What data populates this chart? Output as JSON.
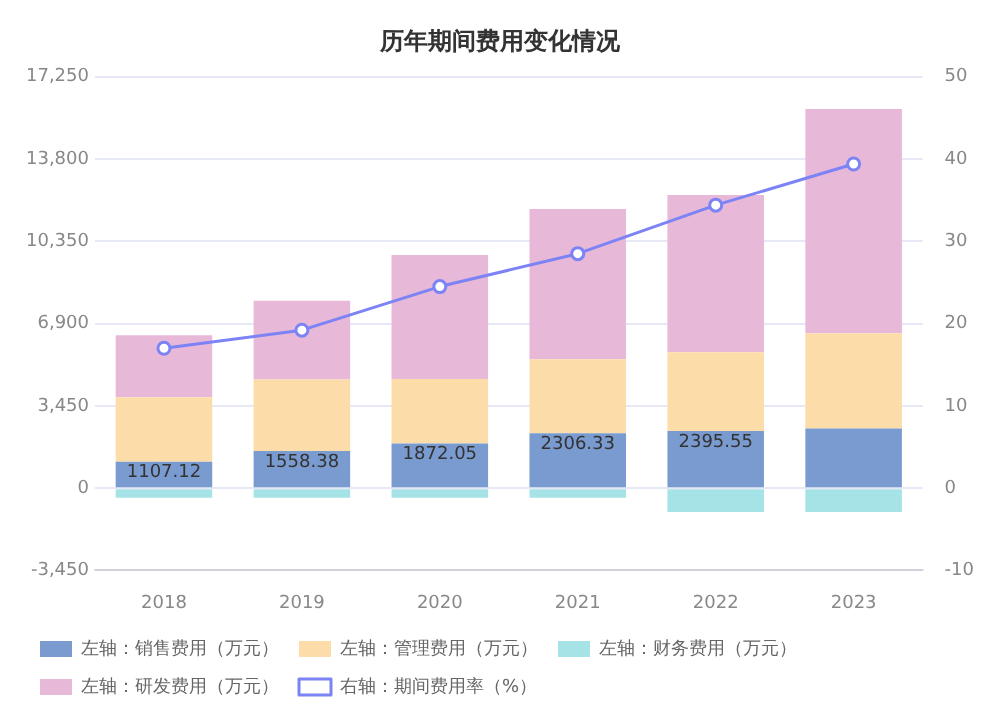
{
  "chart_data": {
    "type": "bar",
    "title": "历年期间费用变化情况",
    "stacked": true,
    "categories": [
      "2018",
      "2019",
      "2020",
      "2021",
      "2022",
      "2023"
    ],
    "series": [
      {
        "name": "左轴：销售费用（万元）",
        "color": "#7a9bd0",
        "values": [
          1107.12,
          1558.38,
          1872.05,
          2306.33,
          2395.55,
          2500
        ],
        "value_labels": [
          "1107.12",
          "1558.38",
          "1872.05",
          "2306.33",
          "2395.55",
          null
        ]
      },
      {
        "name": "左轴：管理费用（万元）",
        "color": "#fcdca8",
        "values": [
          2700,
          3000,
          2700,
          3100,
          3300,
          4000
        ]
      },
      {
        "name": "左轴：财务费用（万元）",
        "color": "#a6e3e6",
        "values": [
          -400,
          -400,
          -400,
          -400,
          -1000,
          -1000
        ]
      },
      {
        "name": "左轴：研发费用（万元）",
        "color": "#e8b8d8",
        "values": [
          2600,
          3300,
          5200,
          6300,
          6600,
          9400
        ]
      },
      {
        "name": "右轴：期间费用率（%）",
        "type": "line",
        "axis": "y2",
        "color": "#7b83f5",
        "marker": "circle",
        "values": [
          17.0,
          19.2,
          24.5,
          28.5,
          34.4,
          39.4
        ]
      }
    ],
    "ylim": [
      -3450,
      17250
    ],
    "yticks": [
      {
        "value": -3450,
        "label": "-3,450"
      },
      0,
      {
        "value": 3450,
        "label": "3,450"
      },
      {
        "value": 6900,
        "label": "6,900"
      },
      {
        "value": 10350,
        "label": "10,350"
      },
      {
        "value": 13800,
        "label": "13,800"
      },
      {
        "value": 17250,
        "label": "17,250"
      }
    ],
    "y2lim": [
      -10,
      50
    ],
    "y2ticks": [
      -10,
      0,
      10,
      20,
      30,
      40,
      50
    ],
    "grid": "y",
    "legend": "bottom"
  }
}
